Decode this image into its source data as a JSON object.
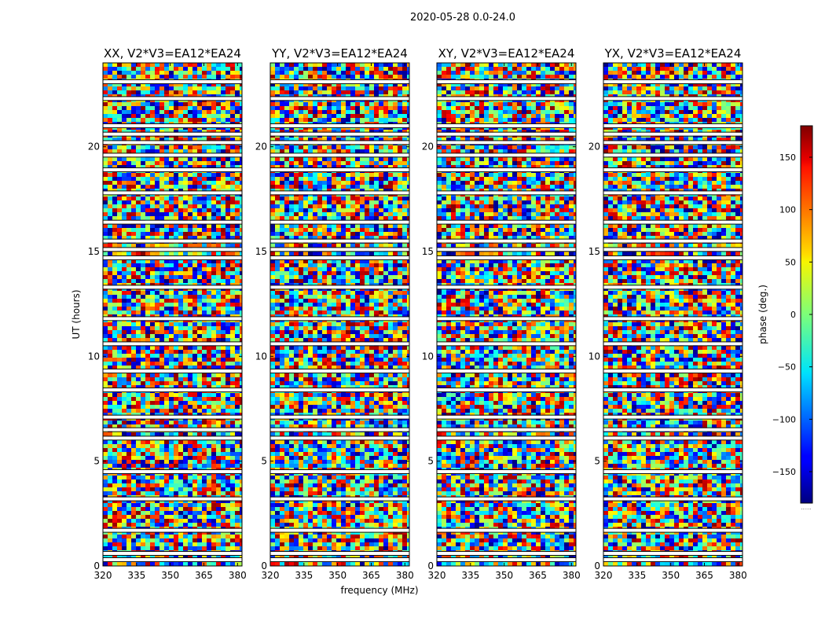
{
  "chart_data": {
    "type": "heatmap",
    "suptitle": "2020-05-28 0.0-24.0",
    "xlabel": "frequency (MHz)",
    "ylabel": "UT (hours)",
    "xlim": [
      320,
      382
    ],
    "ylim": [
      0,
      24
    ],
    "xticks": [
      320,
      335,
      350,
      365,
      380
    ],
    "yticks": [
      0,
      5,
      10,
      15,
      20
    ],
    "panels": [
      {
        "title": "XX, V2*V3=EA12*EA24"
      },
      {
        "title": "YY, V2*V3=EA12*EA24"
      },
      {
        "title": "XY, V2*V3=EA12*EA24"
      },
      {
        "title": "YX, V2*V3=EA12*EA24"
      }
    ],
    "flagged_hours": [
      0.3,
      0.6,
      1.7,
      3.2,
      4.5,
      6.1,
      6.5,
      7.1,
      8.4,
      9.3,
      10.6,
      11.8,
      13.3,
      14.7,
      15.1,
      15.5,
      16.4,
      17.8,
      18.9,
      19.6,
      20.2,
      20.6,
      21.0,
      22.3,
      23.1
    ],
    "colorbar": {
      "label": "phase (deg.)",
      "range": [
        -180,
        180
      ],
      "ticks": [
        150,
        100,
        50,
        0,
        -50,
        -100,
        -150
      ],
      "colormap": "jet",
      "footnote": "......"
    }
  }
}
